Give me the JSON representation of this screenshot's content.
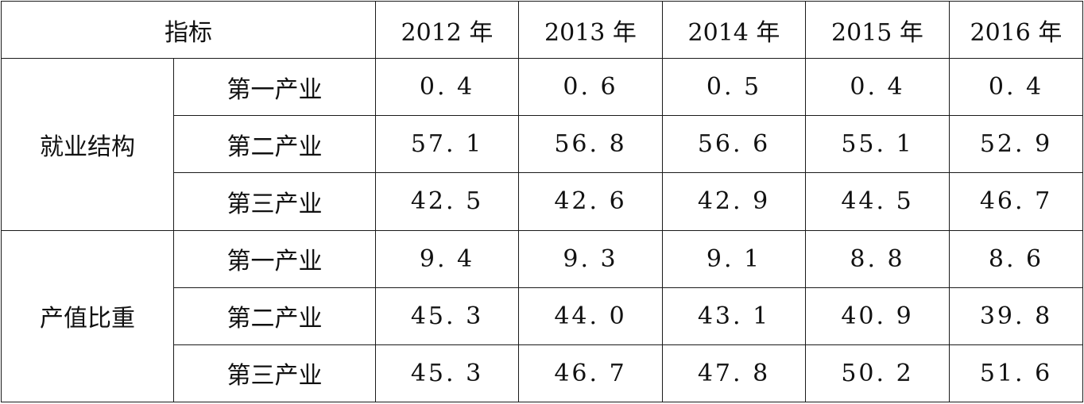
{
  "table": {
    "header": {
      "indicator_label": "指标",
      "years": [
        "2012 年",
        "2013 年",
        "2014 年",
        "2015 年",
        "2016 年"
      ]
    },
    "groups": [
      {
        "name": "就业结构",
        "rows": [
          {
            "sector": "第一产业",
            "values": [
              "0. 4",
              "0. 6",
              "0. 5",
              "0. 4",
              "0. 4"
            ]
          },
          {
            "sector": "第二产业",
            "values": [
              "57. 1",
              "56. 8",
              "56. 6",
              "55. 1",
              "52. 9"
            ]
          },
          {
            "sector": "第三产业",
            "values": [
              "42. 5",
              "42. 6",
              "42. 9",
              "44. 5",
              "46. 7"
            ]
          }
        ]
      },
      {
        "name": "产值比重",
        "rows": [
          {
            "sector": "第一产业",
            "values": [
              "9. 4",
              "9. 3",
              "9. 1",
              "8. 8",
              "8. 6"
            ]
          },
          {
            "sector": "第二产业",
            "values": [
              "45. 3",
              "44. 0",
              "43. 1",
              "40. 9",
              "39. 8"
            ]
          },
          {
            "sector": "第三产业",
            "values": [
              "45. 3",
              "46. 7",
              "47. 8",
              "50. 2",
              "51. 6"
            ]
          }
        ]
      }
    ]
  }
}
